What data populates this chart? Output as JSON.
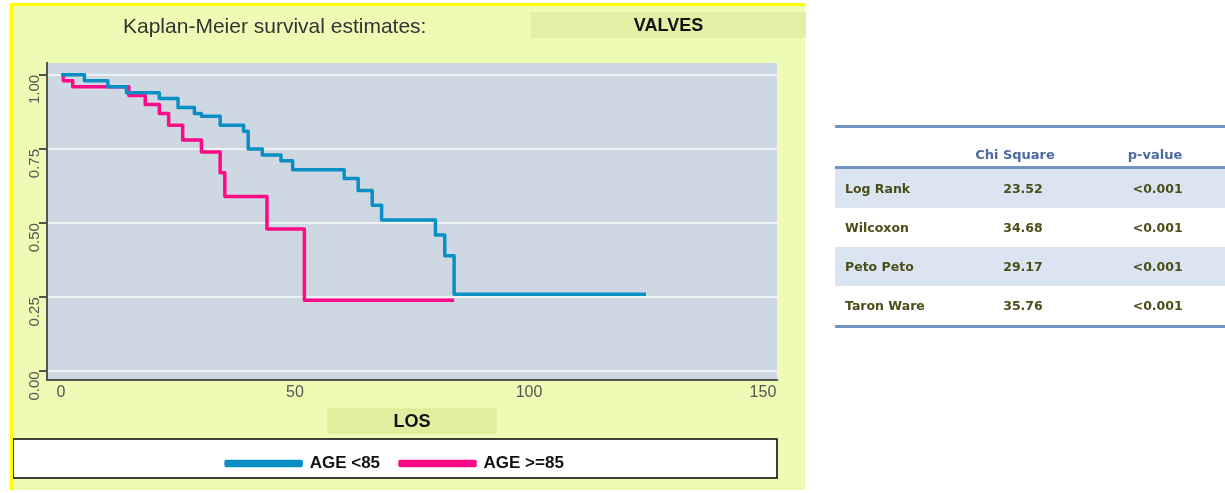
{
  "chart_data": [
    {
      "type": "step",
      "title": "Kaplan-Meier survival estimates:",
      "subtitle": "VALVES",
      "xlabel": "LOS",
      "xlim": [
        -3,
        153
      ],
      "xticks": [
        0,
        50,
        100,
        150
      ],
      "ylim": [
        -0.03,
        1.04
      ],
      "yticks": [
        {
          "value": 0,
          "label": "0.00"
        },
        {
          "value": 0.25,
          "label": "0.25"
        },
        {
          "value": 0.5,
          "label": "0.50"
        },
        {
          "value": 0.75,
          "label": "0.75"
        },
        {
          "value": 1,
          "label": "1.00"
        }
      ],
      "grid": "y",
      "legend": "bottom",
      "series": [
        {
          "name": "AGE <85",
          "color": "#0a8fc4",
          "x": [
            0,
            5,
            10,
            14,
            19,
            21,
            24,
            25,
            28.5,
            30,
            34,
            39,
            40,
            43,
            47,
            49.5,
            60.5,
            63.5,
            66.5,
            68.5,
            80,
            82,
            84,
            125
          ],
          "values": [
            1,
            0.98,
            0.96,
            0.94,
            0.94,
            0.92,
            0.92,
            0.89,
            0.87,
            0.86,
            0.83,
            0.81,
            0.75,
            0.73,
            0.71,
            0.68,
            0.65,
            0.61,
            0.56,
            0.51,
            0.46,
            0.39,
            0.26,
            0.26
          ]
        },
        {
          "name": "AGE >=85",
          "color": "#ff0a86",
          "x": [
            0,
            0.5,
            2.5,
            14.5,
            18,
            21,
            23,
            26,
            30,
            34,
            35,
            44,
            52,
            84
          ],
          "values": [
            1,
            0.98,
            0.96,
            0.93,
            0.9,
            0.87,
            0.83,
            0.78,
            0.74,
            0.67,
            0.59,
            0.48,
            0.24,
            0.24
          ]
        }
      ]
    },
    {
      "type": "other",
      "categories": [
        "Log Rank",
        "Wilcoxon",
        "Peto Peto",
        "Taron Ware"
      ],
      "data_labels": true,
      "series": [
        {
          "name": "Chi Square",
          "values": [
            23.52,
            34.68,
            29.17,
            35.76
          ]
        },
        {
          "name": "p-value",
          "values": [
            null,
            null,
            null,
            null
          ],
          "value_labels": [
            "<0.001",
            "<0.001",
            "<0.001",
            "<0.001"
          ]
        }
      ]
    }
  ]
}
